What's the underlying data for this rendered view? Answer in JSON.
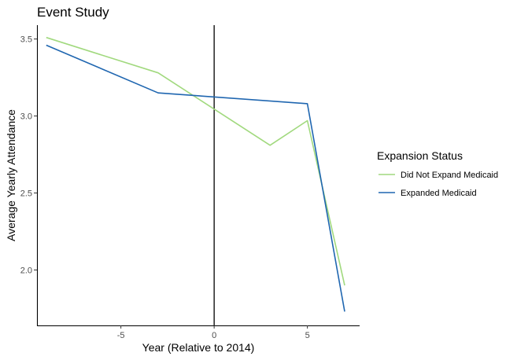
{
  "chart_data": {
    "type": "line",
    "title": "Event Study",
    "xlabel": "Year (Relative to 2014)",
    "ylabel": "Average Yearly Attendance",
    "xlim": [
      -9.5,
      7.8
    ],
    "ylim": [
      1.64,
      3.59
    ],
    "xticks": [
      -5,
      0,
      5
    ],
    "xtick_labels": [
      "-5",
      "0",
      "5"
    ],
    "yticks": [
      2.0,
      2.5,
      3.0,
      3.5
    ],
    "ytick_labels": [
      "2.0",
      "2.5",
      "3.0",
      "3.5"
    ],
    "vline_x": 0,
    "grid": false,
    "legend": {
      "title": "Expansion Status",
      "position": "right"
    },
    "series": [
      {
        "name": "Did Not Expand Medicaid",
        "color": "#a1d97e",
        "x": [
          -9,
          -3,
          3,
          5,
          7
        ],
        "y": [
          3.51,
          3.28,
          2.81,
          2.97,
          1.9
        ]
      },
      {
        "name": "Expanded Medicaid",
        "color": "#1f66b0",
        "x": [
          -9,
          -3,
          5,
          7
        ],
        "y": [
          3.46,
          3.15,
          3.08,
          1.73
        ]
      }
    ]
  }
}
